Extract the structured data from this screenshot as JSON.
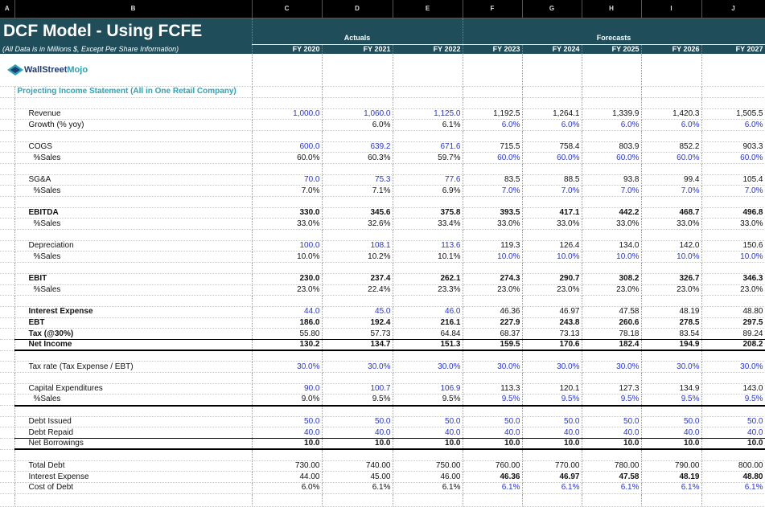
{
  "columns": [
    "A",
    "B",
    "C",
    "D",
    "E",
    "F",
    "G",
    "H",
    "I",
    "J"
  ],
  "header": {
    "title": "DCF Model - Using FCFE",
    "subtitle": "(All Data is in Millions $, Except Per Share Information)",
    "actuals": "Actuals",
    "forecasts": "Forecasts",
    "years": [
      "FY 2020",
      "FY 2021",
      "FY 2022",
      "FY 2023",
      "FY 2024",
      "FY 2025",
      "FY 2026",
      "FY 2027"
    ]
  },
  "logo": {
    "part1": "WallStreet",
    "part2": "Mojo"
  },
  "section_title": "Projecting Income Statement (All in One Retail Company)",
  "rows": [
    {
      "label": "Revenue",
      "blue": "actuals",
      "values": [
        "1,000.0",
        "1,060.0",
        "1,125.0",
        "1,192.5",
        "1,264.1",
        "1,339.9",
        "1,420.3",
        "1,505.5"
      ]
    },
    {
      "label": "Growth (% yoy)",
      "blue": "forecasts",
      "values": [
        null,
        "6.0%",
        "6.1%",
        "6.0%",
        "6.0%",
        "6.0%",
        "6.0%",
        "6.0%"
      ]
    },
    null,
    {
      "label": "COGS",
      "blue": "actuals",
      "values": [
        "600.0",
        "639.2",
        "671.6",
        "715.5",
        "758.4",
        "803.9",
        "852.2",
        "903.3"
      ]
    },
    {
      "label": "%Sales",
      "indent": true,
      "blue": "forecasts",
      "values": [
        "60.0%",
        "60.3%",
        "59.7%",
        "60.0%",
        "60.0%",
        "60.0%",
        "60.0%",
        "60.0%"
      ]
    },
    null,
    {
      "label": "SG&A",
      "blue": "actuals",
      "values": [
        "70.0",
        "75.3",
        "77.6",
        "83.5",
        "88.5",
        "93.8",
        "99.4",
        "105.4"
      ]
    },
    {
      "label": "%Sales",
      "indent": true,
      "blue": "forecasts",
      "values": [
        "7.0%",
        "7.1%",
        "6.9%",
        "7.0%",
        "7.0%",
        "7.0%",
        "7.0%",
        "7.0%"
      ]
    },
    null,
    {
      "label": "EBITDA",
      "label_bold": true,
      "bold": "all",
      "values": [
        "330.0",
        "345.6",
        "375.8",
        "393.5",
        "417.1",
        "442.2",
        "468.7",
        "496.8"
      ]
    },
    {
      "label": "%Sales",
      "indent": true,
      "values": [
        "33.0%",
        "32.6%",
        "33.4%",
        "33.0%",
        "33.0%",
        "33.0%",
        "33.0%",
        "33.0%"
      ]
    },
    null,
    {
      "label": "Depreciation",
      "blue": "actuals",
      "values": [
        "100.0",
        "108.1",
        "113.6",
        "119.3",
        "126.4",
        "134.0",
        "142.0",
        "150.6"
      ]
    },
    {
      "label": "%Sales",
      "indent": true,
      "blue": "forecasts",
      "values": [
        "10.0%",
        "10.2%",
        "10.1%",
        "10.0%",
        "10.0%",
        "10.0%",
        "10.0%",
        "10.0%"
      ]
    },
    null,
    {
      "label": "EBIT",
      "label_bold": true,
      "bold": "all",
      "values": [
        "230.0",
        "237.4",
        "262.1",
        "274.3",
        "290.7",
        "308.2",
        "326.7",
        "346.3"
      ]
    },
    {
      "label": "%Sales",
      "indent": true,
      "values": [
        "23.0%",
        "22.4%",
        "23.3%",
        "23.0%",
        "23.0%",
        "23.0%",
        "23.0%",
        "23.0%"
      ]
    },
    null,
    {
      "label": "Interest Expense",
      "label_bold": true,
      "blue": "actuals",
      "values": [
        "44.0",
        "45.0",
        "46.0",
        "46.36",
        "46.97",
        "47.58",
        "48.19",
        "48.80"
      ]
    },
    {
      "label": "EBT",
      "label_bold": true,
      "bold": "all",
      "values": [
        "186.0",
        "192.4",
        "216.1",
        "227.9",
        "243.8",
        "260.6",
        "278.5",
        "297.5"
      ]
    },
    {
      "label": "Tax (@30%)",
      "label_bold": true,
      "rule_bottom": "thin",
      "values": [
        "55.80",
        "57.73",
        "64.84",
        "68.37",
        "73.13",
        "78.18",
        "83.54",
        "89.24"
      ]
    },
    {
      "label": "Net Income",
      "label_bold": true,
      "bold": "all",
      "rule_bottom": "thick",
      "values": [
        "130.2",
        "134.7",
        "151.3",
        "159.5",
        "170.6",
        "182.4",
        "194.9",
        "208.2"
      ]
    },
    null,
    {
      "label": "Tax rate (Tax Expense / EBT)",
      "blue": "all",
      "values": [
        "30.0%",
        "30.0%",
        "30.0%",
        "30.0%",
        "30.0%",
        "30.0%",
        "30.0%",
        "30.0%"
      ]
    },
    null,
    {
      "label": "Capital Expenditures",
      "blue": "actuals",
      "values": [
        "90.0",
        "100.7",
        "106.9",
        "113.3",
        "120.1",
        "127.3",
        "134.9",
        "143.0"
      ]
    },
    {
      "label": "%Sales",
      "indent": true,
      "blue": "forecasts",
      "rule_bottom": "thick",
      "values": [
        "9.0%",
        "9.5%",
        "9.5%",
        "9.5%",
        "9.5%",
        "9.5%",
        "9.5%",
        "9.5%"
      ]
    },
    null,
    {
      "label": "Debt Issued",
      "blue": "all",
      "values": [
        "50.0",
        "50.0",
        "50.0",
        "50.0",
        "50.0",
        "50.0",
        "50.0",
        "50.0"
      ]
    },
    {
      "label": "Debt Repaid",
      "blue": "all",
      "rule_bottom": "thin",
      "values": [
        "40.0",
        "40.0",
        "40.0",
        "40.0",
        "40.0",
        "40.0",
        "40.0",
        "40.0"
      ]
    },
    {
      "label": "Net Borrowings",
      "bold": "all",
      "rule_bottom": "thick",
      "values": [
        "10.0",
        "10.0",
        "10.0",
        "10.0",
        "10.0",
        "10.0",
        "10.0",
        "10.0"
      ]
    },
    null,
    {
      "label": "Total Debt",
      "values": [
        "730.00",
        "740.00",
        "750.00",
        "760.00",
        "770.00",
        "780.00",
        "790.00",
        "800.00"
      ]
    },
    {
      "label": "Interest Expense",
      "bold": "forecasts",
      "values": [
        "44.00",
        "45.00",
        "46.00",
        "46.36",
        "46.97",
        "47.58",
        "48.19",
        "48.80"
      ]
    },
    {
      "label": "Cost of Debt",
      "blue": "forecasts",
      "values": [
        "6.0%",
        "6.1%",
        "6.1%",
        "6.1%",
        "6.1%",
        "6.1%",
        "6.1%",
        "6.1%"
      ]
    }
  ]
}
